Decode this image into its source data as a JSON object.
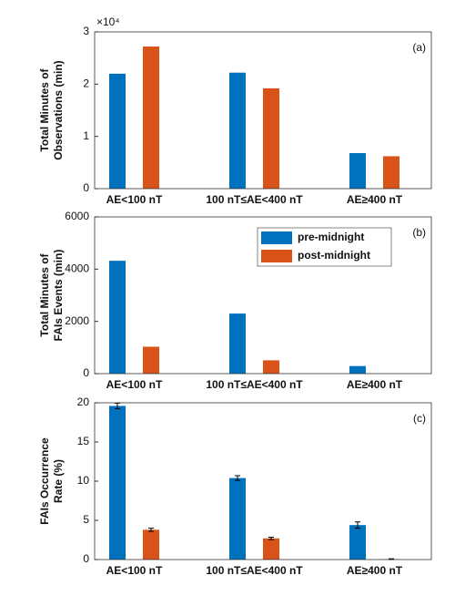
{
  "chart_data": [
    {
      "type": "bar",
      "panel_label": "(a)",
      "ylabel": [
        "Total Minutes of",
        "Observations (min)"
      ],
      "y_scale_label": "×10⁴",
      "categories": [
        "AE<100 nT",
        "100 nT≤AE<400 nT",
        "AE≥400 nT"
      ],
      "series": [
        {
          "color": "#0072BD",
          "values": [
            2.2,
            2.22,
            0.68
          ]
        },
        {
          "color": "#D95319",
          "values": [
            2.72,
            1.92,
            0.62
          ]
        }
      ],
      "ylim": [
        0,
        3
      ],
      "yticks": [
        0,
        1,
        2,
        3
      ]
    },
    {
      "type": "bar",
      "panel_label": "(b)",
      "ylabel": [
        "Total Minutes of",
        "FAIs Events (min)"
      ],
      "legend": "northeast",
      "categories": [
        "AE<100 nT",
        "100 nT≤AE<400 nT",
        "AE≥400 nT"
      ],
      "series": [
        {
          "name": "pre-midnight",
          "color": "#0072BD",
          "values": [
            4320,
            2300,
            290
          ]
        },
        {
          "name": "post-midnight",
          "color": "#D95319",
          "values": [
            1030,
            510,
            0
          ]
        }
      ],
      "ylim": [
        0,
        6000
      ],
      "yticks": [
        0,
        2000,
        4000,
        6000
      ]
    },
    {
      "type": "bar",
      "panel_label": "(c)",
      "ylabel": [
        "FAIs Occurrence",
        "Rate (%)"
      ],
      "categories": [
        "AE<100 nT",
        "100 nT≤AE<400 nT",
        "AE≥400 nT"
      ],
      "series": [
        {
          "color": "#0072BD",
          "values": [
            19.6,
            10.4,
            4.4
          ],
          "errors": [
            0.35,
            0.3,
            0.4
          ]
        },
        {
          "color": "#D95319",
          "values": [
            3.8,
            2.7,
            0.05
          ],
          "errors": [
            0.2,
            0.15,
            0.05
          ]
        }
      ],
      "ylim": [
        0,
        20
      ],
      "yticks": [
        0,
        5,
        10,
        15,
        20
      ]
    }
  ]
}
